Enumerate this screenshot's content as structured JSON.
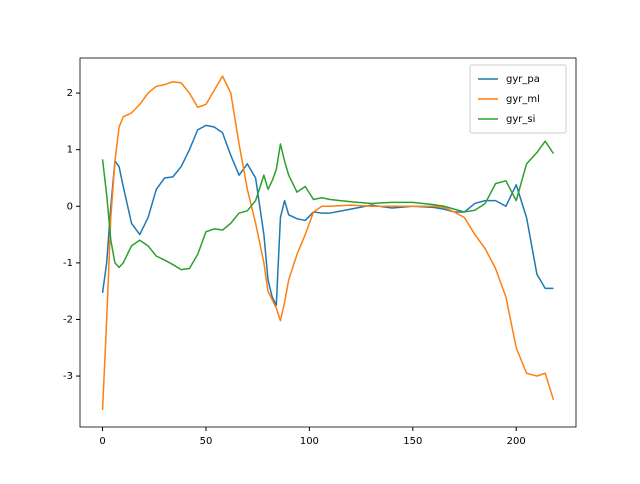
{
  "chart_data": {
    "type": "line",
    "x": [
      0,
      2,
      4,
      6,
      8,
      10,
      14,
      18,
      22,
      26,
      30,
      34,
      38,
      42,
      46,
      50,
      54,
      58,
      62,
      66,
      70,
      74,
      78,
      80,
      82,
      84,
      86,
      88,
      90,
      94,
      98,
      102,
      106,
      110,
      120,
      130,
      140,
      150,
      160,
      165,
      170,
      175,
      180,
      185,
      190,
      195,
      200,
      205,
      210,
      214,
      218
    ],
    "series": [
      {
        "name": "gyr_pa",
        "color": "#1f77b4",
        "values": [
          -1.53,
          -1.0,
          0.0,
          0.8,
          0.7,
          0.35,
          -0.3,
          -0.5,
          -0.2,
          0.3,
          0.5,
          0.52,
          0.7,
          1.0,
          1.35,
          1.43,
          1.4,
          1.3,
          0.9,
          0.55,
          0.75,
          0.5,
          -0.5,
          -1.3,
          -1.6,
          -1.75,
          -0.2,
          0.1,
          -0.15,
          -0.22,
          -0.25,
          -0.1,
          -0.12,
          -0.12,
          -0.05,
          0.02,
          -0.03,
          0.0,
          -0.02,
          -0.05,
          -0.1,
          -0.1,
          0.05,
          0.1,
          0.1,
          0.0,
          0.38,
          -0.2,
          -1.2,
          -1.45,
          -1.45
        ]
      },
      {
        "name": "gyr_ml",
        "color": "#ff7f0e",
        "values": [
          -3.6,
          -2.0,
          -0.2,
          0.8,
          1.4,
          1.58,
          1.65,
          1.8,
          2.0,
          2.12,
          2.15,
          2.2,
          2.18,
          2.0,
          1.75,
          1.8,
          2.05,
          2.3,
          2.0,
          1.1,
          0.3,
          -0.3,
          -1.0,
          -1.5,
          -1.65,
          -1.8,
          -2.02,
          -1.7,
          -1.3,
          -0.85,
          -0.5,
          -0.1,
          0.0,
          0.0,
          0.02,
          0.0,
          0.0,
          0.0,
          0.0,
          -0.02,
          -0.1,
          -0.2,
          -0.5,
          -0.75,
          -1.1,
          -1.6,
          -2.5,
          -2.95,
          -3.0,
          -2.95,
          -3.42
        ]
      },
      {
        "name": "gyr_si",
        "color": "#2ca02c",
        "values": [
          0.83,
          0.2,
          -0.6,
          -1.0,
          -1.08,
          -1.0,
          -0.7,
          -0.6,
          -0.7,
          -0.88,
          -0.95,
          -1.03,
          -1.12,
          -1.1,
          -0.85,
          -0.45,
          -0.4,
          -0.42,
          -0.3,
          -0.12,
          -0.08,
          0.1,
          0.55,
          0.3,
          0.45,
          0.65,
          1.1,
          0.8,
          0.55,
          0.25,
          0.35,
          0.12,
          0.15,
          0.12,
          0.08,
          0.05,
          0.07,
          0.07,
          0.03,
          0.0,
          -0.05,
          -0.1,
          -0.07,
          0.05,
          0.4,
          0.45,
          0.1,
          0.75,
          0.95,
          1.15,
          0.93
        ]
      }
    ],
    "xlim": [
      -10.9,
      228.9
    ],
    "ylim": [
      -3.9,
      2.62
    ],
    "xticks": [
      0,
      50,
      100,
      150,
      200
    ],
    "yticks": [
      -3,
      -2,
      -1,
      0,
      1,
      2
    ],
    "legend": "upper right"
  }
}
